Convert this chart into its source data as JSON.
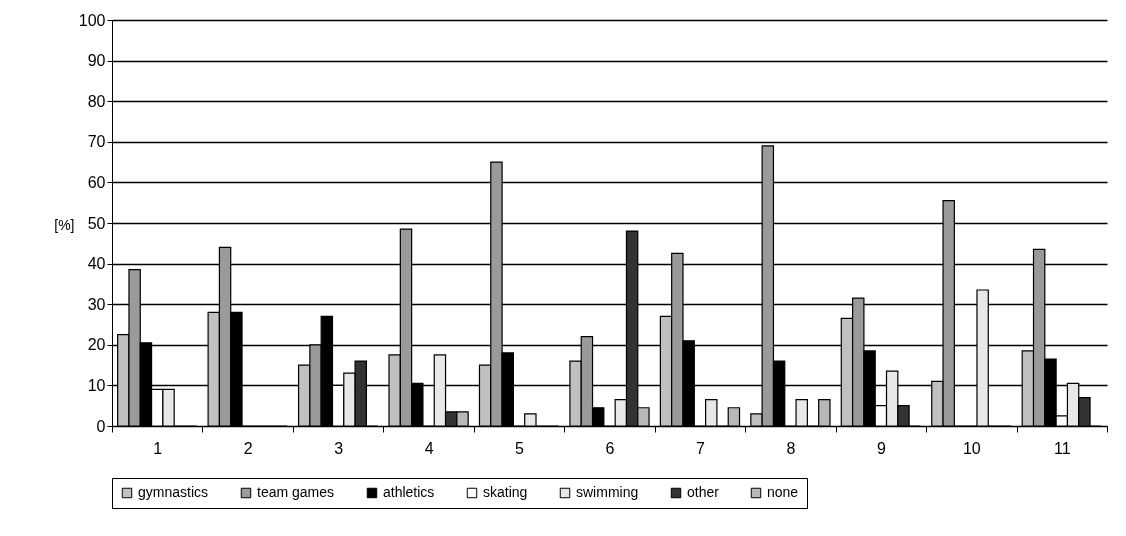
{
  "chart_data": {
    "type": "bar",
    "ylabel": "[%]",
    "categories": [
      "1",
      "2",
      "3",
      "4",
      "5",
      "6",
      "7",
      "8",
      "9",
      "10",
      "11"
    ],
    "series": [
      {
        "name": "gymnastics",
        "color": "#c0c0c0",
        "values": [
          22.5,
          28,
          15,
          17.5,
          15,
          16,
          27,
          3,
          26.5,
          11,
          18.5
        ]
      },
      {
        "name": "team games",
        "color": "#9a9a9a",
        "values": [
          38.5,
          44,
          20,
          48.5,
          65,
          22,
          42.5,
          69,
          31.5,
          55.5,
          43.5
        ]
      },
      {
        "name": "athletics",
        "color": "#000000",
        "values": [
          20.5,
          28,
          27,
          10.5,
          18,
          4.5,
          21,
          16,
          18.5,
          0,
          16.5
        ]
      },
      {
        "name": "skating",
        "color": "#ffffff",
        "values": [
          9,
          0,
          10,
          0,
          0,
          0,
          0,
          0,
          5,
          0,
          2.5
        ]
      },
      {
        "name": "swimming",
        "color": "#e8e8e8",
        "values": [
          9,
          0,
          13,
          17.5,
          3,
          6.5,
          6.5,
          6.5,
          13.5,
          33.5,
          10.5
        ]
      },
      {
        "name": "other",
        "color": "#333333",
        "values": [
          0,
          0,
          16,
          3.5,
          0,
          48,
          0,
          0,
          5,
          0,
          7
        ]
      },
      {
        "name": "none",
        "color": "#b8b8b8",
        "values": [
          0,
          0,
          0,
          3.5,
          0,
          4.5,
          4.5,
          6.5,
          0,
          0,
          0
        ]
      }
    ],
    "ylim": [
      0,
      100
    ],
    "yticks": [
      0,
      10,
      20,
      30,
      40,
      50,
      60,
      70,
      80,
      90,
      100
    ],
    "grid": "y",
    "legend": "bottom"
  }
}
